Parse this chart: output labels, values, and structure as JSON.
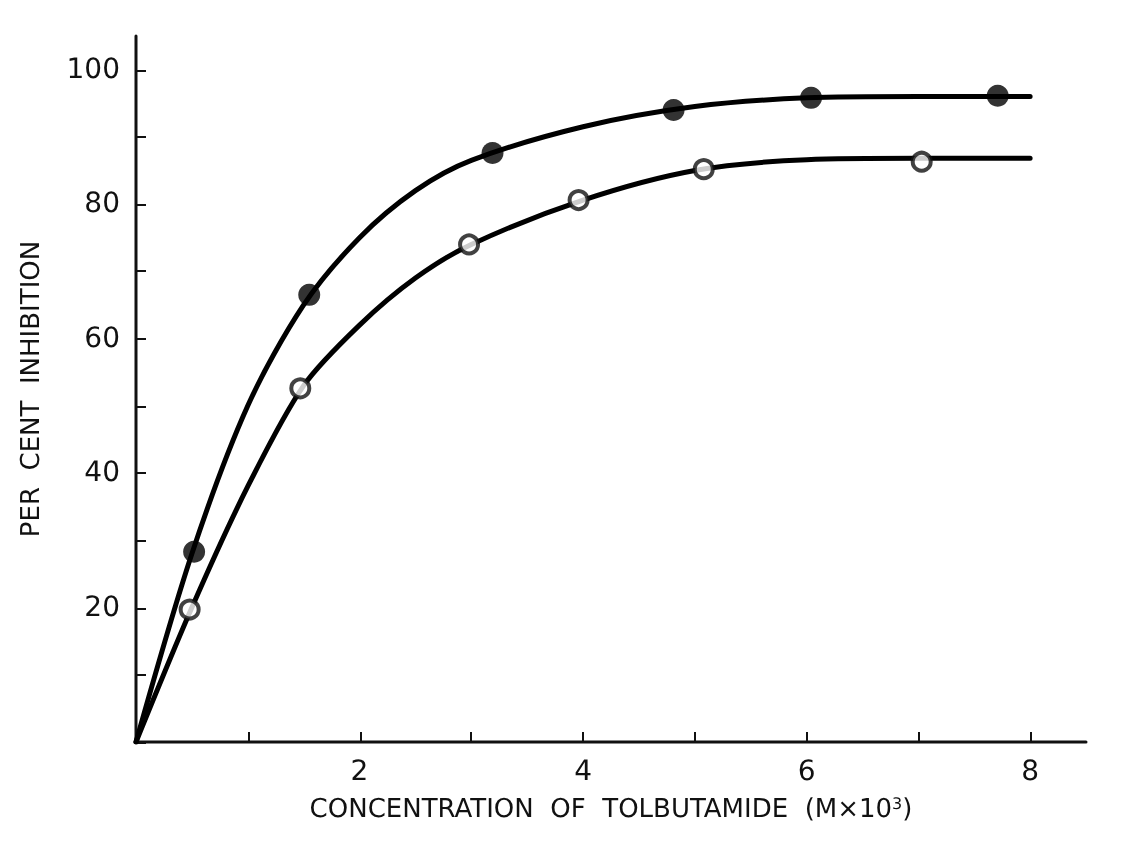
{
  "chart_data": {
    "type": "scatter",
    "xlabel": "CONCENTRATION  OF  TOLBUTAMIDE  (M×10$^{3}$)",
    "ylabel": "PER  CENT  INHIBITION",
    "series": [
      {
        "type": "line",
        "color": "#000000",
        "marker": "none",
        "x": [
          0,
          0.5,
          1,
          1.5,
          2,
          2.5,
          3,
          4,
          5,
          6,
          7,
          8
        ],
        "values": [
          0,
          28,
          50,
          65,
          75,
          82,
          86.5,
          91.5,
          94.5,
          95.8,
          96,
          96
        ]
      },
      {
        "type": "line",
        "color": "#000000",
        "marker": "none",
        "x": [
          0,
          0.5,
          1,
          1.5,
          2,
          2.5,
          3,
          4,
          5,
          6,
          7,
          8
        ],
        "values": [
          0,
          20,
          38,
          53,
          62,
          69,
          74,
          80.6,
          85,
          86.6,
          86.8,
          86.8
        ]
      },
      {
        "color": "#000000",
        "marker": "circle",
        "x": [
          0.52,
          1.55,
          3.19,
          4.81,
          6.04,
          7.71
        ],
        "values": [
          28.3,
          66.5,
          87.6,
          94,
          95.8,
          96.1
        ]
      },
      {
        "color": "#ffffff",
        "marker": "circle",
        "x": [
          0.48,
          1.47,
          2.98,
          3.96,
          5.08,
          7.03
        ],
        "values": [
          19.7,
          52.6,
          74,
          80.6,
          85.2,
          86.3
        ]
      }
    ],
    "xlim": [
      0,
      8.5
    ],
    "xticks": [
      {
        "value": 0,
        "label": null
      },
      {
        "value": 1,
        "label": null
      },
      2,
      {
        "value": 3,
        "label": null
      },
      4,
      {
        "value": 5,
        "label": null
      },
      6,
      {
        "value": 7,
        "label": null
      },
      8
    ],
    "ylim": [
      0,
      105
    ],
    "yticks": [
      {
        "value": 0,
        "label": null
      },
      {
        "value": 10,
        "label": null
      },
      20,
      {
        "value": 30,
        "label": null
      },
      40,
      {
        "value": 50,
        "label": null
      },
      60,
      {
        "value": 70,
        "label": null
      },
      80,
      {
        "value": 90,
        "label": null
      },
      100
    ],
    "grid": false
  }
}
